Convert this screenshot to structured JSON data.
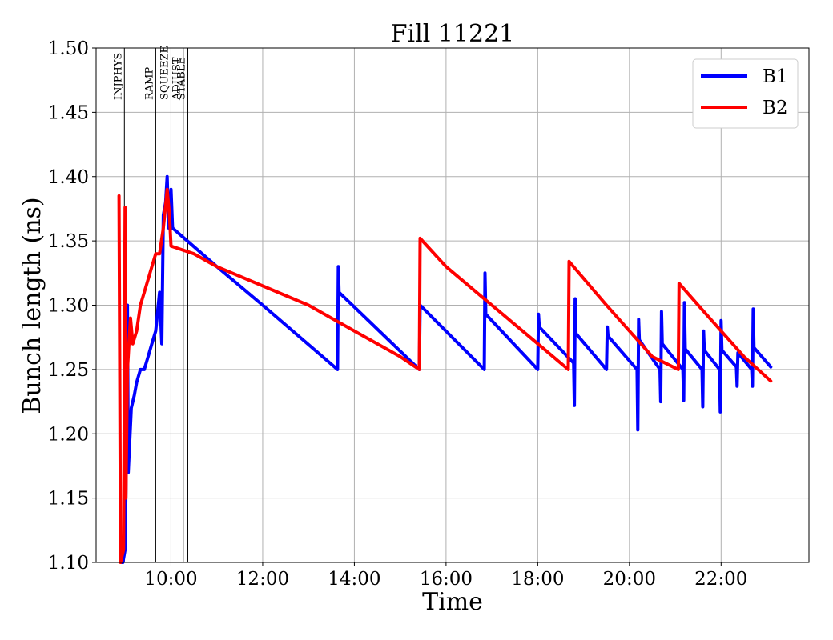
{
  "chart_data": {
    "type": "line",
    "title": "Fill 11221",
    "xlabel": "Time",
    "ylabel": "Bunch length (ns)",
    "ylim": [
      1.1,
      1.5
    ],
    "xlim": [
      "08:22",
      "23:55"
    ],
    "grid": true,
    "legend_position": "top-right",
    "x_ticks": [
      "10:00",
      "12:00",
      "14:00",
      "16:00",
      "18:00",
      "20:00",
      "22:00"
    ],
    "y_ticks": [
      "1.10",
      "1.15",
      "1.20",
      "1.25",
      "1.30",
      "1.35",
      "1.40",
      "1.45",
      "1.50"
    ],
    "phase_markers": [
      {
        "label": "INJPHYS",
        "time": "08:59"
      },
      {
        "label": "RAMP",
        "time": "09:40"
      },
      {
        "label": "SQUEEZE",
        "time": "10:00"
      },
      {
        "label": "ADJUST",
        "time": "10:16"
      },
      {
        "label": "STABLE",
        "time": "10:22"
      }
    ],
    "series": [
      {
        "name": "B1",
        "color": "#0000ff",
        "points": [
          [
            "08:55",
            1.1
          ],
          [
            "08:57",
            1.1
          ],
          [
            "09:00",
            1.11
          ],
          [
            "09:02",
            1.2
          ],
          [
            "09:03",
            1.3
          ],
          [
            "09:04",
            1.17
          ],
          [
            "09:08",
            1.22
          ],
          [
            "09:12",
            1.23
          ],
          [
            "09:15",
            1.24
          ],
          [
            "09:20",
            1.25
          ],
          [
            "09:25",
            1.25
          ],
          [
            "09:30",
            1.26
          ],
          [
            "09:35",
            1.27
          ],
          [
            "09:40",
            1.28
          ],
          [
            "09:45",
            1.31
          ],
          [
            "09:48",
            1.27
          ],
          [
            "09:50",
            1.37
          ],
          [
            "09:53",
            1.38
          ],
          [
            "09:55",
            1.4
          ],
          [
            "09:57",
            1.36
          ],
          [
            "10:00",
            1.39
          ],
          [
            "10:02",
            1.36
          ],
          [
            "11:00",
            1.33
          ],
          [
            "12:00",
            1.3
          ],
          [
            "13:38",
            1.25
          ],
          [
            "13:39",
            1.33
          ],
          [
            "13:40",
            1.31
          ],
          [
            "15:25",
            1.25
          ],
          [
            "15:26",
            1.3
          ],
          [
            "16:50",
            1.25
          ],
          [
            "16:51",
            1.325
          ],
          [
            "16:52",
            1.293
          ],
          [
            "18:00",
            1.25
          ],
          [
            "18:01",
            1.293
          ],
          [
            "18:02",
            1.283
          ],
          [
            "18:47",
            1.255
          ],
          [
            "18:48",
            1.222
          ],
          [
            "18:49",
            1.305
          ],
          [
            "18:50",
            1.278
          ],
          [
            "19:30",
            1.25
          ],
          [
            "19:31",
            1.283
          ],
          [
            "19:32",
            1.276
          ],
          [
            "20:10",
            1.25
          ],
          [
            "20:11",
            1.203
          ],
          [
            "20:12",
            1.289
          ],
          [
            "20:13",
            1.273
          ],
          [
            "20:40",
            1.25
          ],
          [
            "20:41",
            1.225
          ],
          [
            "20:42",
            1.295
          ],
          [
            "20:43",
            1.27
          ],
          [
            "21:10",
            1.25
          ],
          [
            "21:11",
            1.226
          ],
          [
            "21:12",
            1.302
          ],
          [
            "21:13",
            1.266
          ],
          [
            "21:35",
            1.25
          ],
          [
            "21:36",
            1.221
          ],
          [
            "21:37",
            1.28
          ],
          [
            "21:38",
            1.265
          ],
          [
            "21:58",
            1.25
          ],
          [
            "21:59",
            1.217
          ],
          [
            "22:00",
            1.288
          ],
          [
            "22:01",
            1.265
          ],
          [
            "22:20",
            1.252
          ],
          [
            "22:21",
            1.237
          ],
          [
            "22:22",
            1.263
          ],
          [
            "22:40",
            1.25
          ],
          [
            "22:41",
            1.237
          ],
          [
            "22:42",
            1.297
          ],
          [
            "22:43",
            1.267
          ],
          [
            "23:05",
            1.252
          ]
        ]
      },
      {
        "name": "B2",
        "color": "#ff0000",
        "points": [
          [
            "08:52",
            1.385
          ],
          [
            "08:54",
            1.1
          ],
          [
            "08:58",
            1.11
          ],
          [
            "09:00",
            1.376
          ],
          [
            "09:01",
            1.15
          ],
          [
            "09:03",
            1.25
          ],
          [
            "09:05",
            1.27
          ],
          [
            "09:07",
            1.29
          ],
          [
            "09:10",
            1.27
          ],
          [
            "09:15",
            1.28
          ],
          [
            "09:20",
            1.3
          ],
          [
            "09:25",
            1.31
          ],
          [
            "09:30",
            1.32
          ],
          [
            "09:35",
            1.33
          ],
          [
            "09:40",
            1.34
          ],
          [
            "09:45",
            1.34
          ],
          [
            "09:50",
            1.36
          ],
          [
            "09:55",
            1.39
          ],
          [
            "09:58",
            1.37
          ],
          [
            "10:00",
            1.346
          ],
          [
            "10:30",
            1.34
          ],
          [
            "11:00",
            1.33
          ],
          [
            "12:00",
            1.315
          ],
          [
            "13:00",
            1.3
          ],
          [
            "14:00",
            1.28
          ],
          [
            "15:00",
            1.26
          ],
          [
            "15:25",
            1.25
          ],
          [
            "15:26",
            1.352
          ],
          [
            "16:00",
            1.33
          ],
          [
            "17:00",
            1.3
          ],
          [
            "18:00",
            1.27
          ],
          [
            "18:40",
            1.25
          ],
          [
            "18:41",
            1.334
          ],
          [
            "19:30",
            1.3
          ],
          [
            "20:30",
            1.26
          ],
          [
            "21:04",
            1.25
          ],
          [
            "21:05",
            1.317
          ],
          [
            "21:30",
            1.3
          ],
          [
            "22:00",
            1.28
          ],
          [
            "22:30",
            1.26
          ],
          [
            "23:05",
            1.241
          ]
        ]
      }
    ]
  }
}
